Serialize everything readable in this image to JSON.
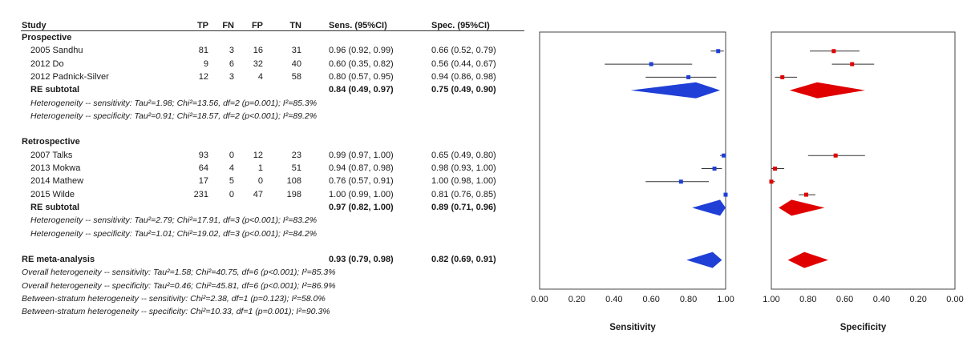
{
  "table": {
    "headers": {
      "study": "Study",
      "tp": "TP",
      "fn": "FN",
      "fp": "FP",
      "tn": "TN",
      "sens": "Sens. (95%CI)",
      "spec": "Spec. (95%CI)"
    },
    "groups": [
      {
        "label": "Prospective",
        "studies": [
          {
            "name": "2005 Sandhu",
            "tp": "81",
            "fn": "3",
            "fp": "16",
            "tn": "31",
            "sens": "0.96 (0.92, 0.99)",
            "spec": "0.66 (0.52, 0.79)"
          },
          {
            "name": "2012 Do",
            "tp": "9",
            "fn": "6",
            "fp": "32",
            "tn": "40",
            "sens": "0.60 (0.35, 0.82)",
            "spec": "0.56 (0.44, 0.67)"
          },
          {
            "name": "2012 Padnick-Silver",
            "tp": "12",
            "fn": "3",
            "fp": "4",
            "tn": "58",
            "sens": "0.80 (0.57, 0.95)",
            "spec": "0.94 (0.86, 0.98)"
          }
        ],
        "subtotal": {
          "label": "RE subtotal",
          "sens": "0.84 (0.49, 0.97)",
          "spec": "0.75 (0.49, 0.90)"
        },
        "heterogeneity": [
          "Heterogeneity -- sensitivity: Tau²=1.98; Chi²=13.56, df=2 (p=0.001); I²=85.3%",
          "Heterogeneity -- specificity: Tau²=0.91; Chi²=18.57, df=2 (p<0.001); I²=89.2%"
        ]
      },
      {
        "label": "Retrospective",
        "studies": [
          {
            "name": "2007 Talks",
            "tp": "93",
            "fn": "0",
            "fp": "12",
            "tn": "23",
            "sens": "0.99 (0.97, 1.00)",
            "spec": "0.65 (0.49, 0.80)"
          },
          {
            "name": "2013 Mokwa",
            "tp": "64",
            "fn": "4",
            "fp": "1",
            "tn": "51",
            "sens": "0.94 (0.87, 0.98)",
            "spec": "0.98 (0.93, 1.00)"
          },
          {
            "name": "2014 Mathew",
            "tp": "17",
            "fn": "5",
            "fp": "0",
            "tn": "108",
            "sens": "0.76 (0.57, 0.91)",
            "spec": "1.00 (0.98, 1.00)"
          },
          {
            "name": "2015 Wilde",
            "tp": "231",
            "fn": "0",
            "fp": "47",
            "tn": "198",
            "sens": "1.00 (0.99, 1.00)",
            "spec": "0.81 (0.76, 0.85)"
          }
        ],
        "subtotal": {
          "label": "RE subtotal",
          "sens": "0.97 (0.82, 1.00)",
          "spec": "0.89 (0.71, 0.96)"
        },
        "heterogeneity": [
          "Heterogeneity -- sensitivity: Tau²=2.79; Chi²=17.91, df=3 (p<0.001); I²=83.2%",
          "Heterogeneity -- specificity: Tau²=1.01; Chi²=19.02, df=3 (p<0.001); I²=84.2%"
        ]
      }
    ],
    "overall": {
      "label": "RE meta-analysis",
      "sens": "0.93 (0.79, 0.98)",
      "spec": "0.82 (0.69, 0.91)",
      "notes": [
        "Overall heterogeneity -- sensitivity: Tau²=1.58; Chi²=40.75, df=6 (p<0.001); I²=85.3%",
        "Overall heterogeneity -- specificity: Tau²=0.46; Chi²=45.81, df=6 (p<0.001); I²=86.9%",
        "Between-stratum heterogeneity -- sensitivity: Chi²=2.38, df=1 (p=0.123); I²=58.0%",
        "Between-stratum heterogeneity -- specificity: Chi²=10.33, df=1 (p=0.001); I²=90.3%"
      ]
    }
  },
  "chart_data": [
    {
      "type": "scatter",
      "title": "",
      "xlabel": "Sensitivity",
      "xlim": [
        0,
        1
      ],
      "x_direction": "ascending",
      "ticks": [
        "0.00",
        "0.20",
        "0.40",
        "0.60",
        "0.80",
        "1.00"
      ],
      "marker_color": "#1f3fd6",
      "studies": [
        {
          "name": "2005 Sandhu",
          "est": 0.96,
          "lo": 0.92,
          "hi": 0.99
        },
        {
          "name": "2012 Do",
          "est": 0.6,
          "lo": 0.35,
          "hi": 0.82
        },
        {
          "name": "2012 Padnick-Silver",
          "est": 0.8,
          "lo": 0.57,
          "hi": 0.95
        },
        {
          "name": "2007 Talks",
          "est": 0.99,
          "lo": 0.97,
          "hi": 1.0
        },
        {
          "name": "2013 Mokwa",
          "est": 0.94,
          "lo": 0.87,
          "hi": 0.98
        },
        {
          "name": "2014 Mathew",
          "est": 0.76,
          "lo": 0.57,
          "hi": 0.91
        },
        {
          "name": "2015 Wilde",
          "est": 1.0,
          "lo": 0.99,
          "hi": 1.0
        }
      ],
      "pooled": [
        {
          "name": "Prospective RE subtotal",
          "est": 0.84,
          "lo": 0.49,
          "hi": 0.97
        },
        {
          "name": "Retrospective RE subtotal",
          "est": 0.97,
          "lo": 0.82,
          "hi": 1.0
        },
        {
          "name": "RE meta-analysis",
          "est": 0.93,
          "lo": 0.79,
          "hi": 0.98
        }
      ]
    },
    {
      "type": "scatter",
      "title": "",
      "xlabel": "Specificity",
      "xlim": [
        1,
        0
      ],
      "x_direction": "descending",
      "ticks": [
        "1.00",
        "0.80",
        "0.60",
        "0.40",
        "0.20",
        "0.00"
      ],
      "marker_color": "#e00000",
      "studies": [
        {
          "name": "2005 Sandhu",
          "est": 0.66,
          "lo": 0.52,
          "hi": 0.79
        },
        {
          "name": "2012 Do",
          "est": 0.56,
          "lo": 0.44,
          "hi": 0.67
        },
        {
          "name": "2012 Padnick-Silver",
          "est": 0.94,
          "lo": 0.86,
          "hi": 0.98
        },
        {
          "name": "2007 Talks",
          "est": 0.65,
          "lo": 0.49,
          "hi": 0.8
        },
        {
          "name": "2013 Mokwa",
          "est": 0.98,
          "lo": 0.93,
          "hi": 1.0
        },
        {
          "name": "2014 Mathew",
          "est": 1.0,
          "lo": 0.98,
          "hi": 1.0
        },
        {
          "name": "2015 Wilde",
          "est": 0.81,
          "lo": 0.76,
          "hi": 0.85
        }
      ],
      "pooled": [
        {
          "name": "Prospective RE subtotal",
          "est": 0.75,
          "lo": 0.49,
          "hi": 0.9
        },
        {
          "name": "Retrospective RE subtotal",
          "est": 0.89,
          "lo": 0.71,
          "hi": 0.96
        },
        {
          "name": "RE meta-analysis",
          "est": 0.82,
          "lo": 0.69,
          "hi": 0.91
        }
      ]
    }
  ]
}
